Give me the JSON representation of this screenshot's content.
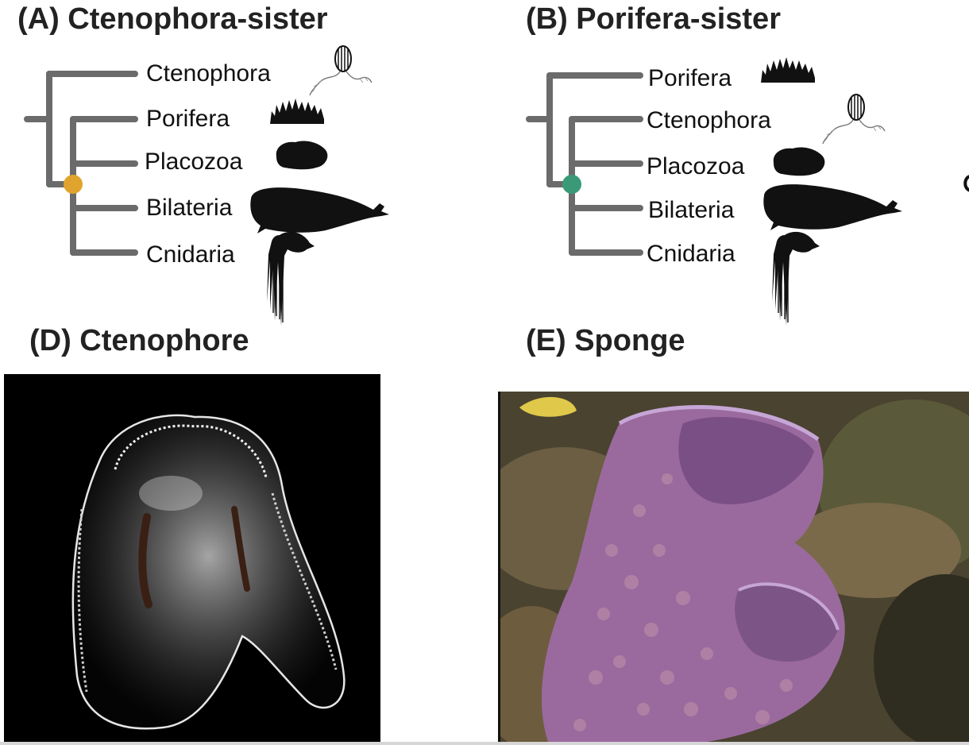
{
  "panels": {
    "a": {
      "title": "(A) Ctenophora-sister",
      "node_color": "#e0a42e",
      "taxa": [
        "Ctenophora",
        "Porifera",
        "Placozoa",
        "Bilateria",
        "Cnidaria"
      ]
    },
    "b": {
      "title": "(B) Porifera-sister",
      "node_color": "#3a9a77",
      "taxa": [
        "Porifera",
        "Ctenophora",
        "Placozoa",
        "Bilateria",
        "Cnidaria"
      ]
    },
    "d": {
      "title": "(D) Ctenophore"
    },
    "e": {
      "title": "(E) Sponge"
    }
  },
  "colors": {
    "branch": "#6b6b6b",
    "silhouette": "#111111",
    "sponge": "#9a6a9e",
    "ctenophore_bg": "#000000"
  },
  "icons": {
    "ctenophore": "ctenophore-silhouette-icon",
    "sponge": "sponge-silhouette-icon",
    "placozoan": "placozoan-silhouette-icon",
    "whale": "sperm-whale-silhouette-icon",
    "cnidarian": "siphonophore-silhouette-icon"
  }
}
